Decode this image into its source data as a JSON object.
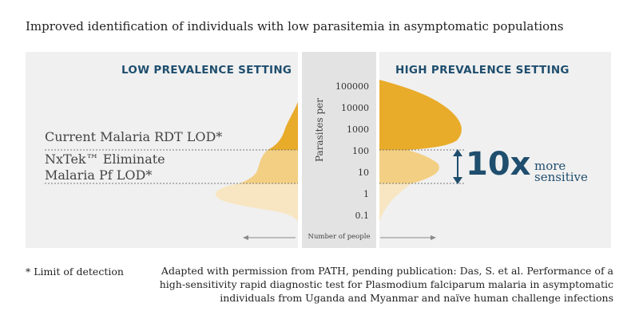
{
  "title": "Improved identification of individuals with low parasitemia in asymptomatic populations",
  "panels": {
    "left_heading": "LOW PREVALENCE SETTING",
    "right_heading": "HIGH PREVALENCE SETTING"
  },
  "lod_labels": {
    "rdt": "Current Malaria RDT LOD*",
    "nxtek_line1": "NxTek™ Eliminate",
    "nxtek_line2": "Malaria Pf LOD*"
  },
  "axis": {
    "y_title": "Parasites per",
    "x_title": "Number of people",
    "ticks": [
      "100000",
      "10000",
      "1000",
      "100",
      "10",
      "1",
      "0.1"
    ]
  },
  "comparison": {
    "value": "10x",
    "line1": "more",
    "line2": "sensitive"
  },
  "footnote": "* Limit of detection",
  "source": "Adapted with permission from PATH, pending publication: Das, S. et al. Performance of a high-sensitivity rapid diagnostic test for Plasmodium falciparum malaria in asymptomatic individuals from Uganda and Myanmar and naïve human challenge infections",
  "colors": {
    "dark_gold": "#e8ab2a",
    "mid_gold": "#f2cf82",
    "light_gold": "#f8e6c2",
    "navy": "#1f4e6e",
    "panel": "#f0f0f0",
    "mid_panel": "#e3e3e3"
  }
}
